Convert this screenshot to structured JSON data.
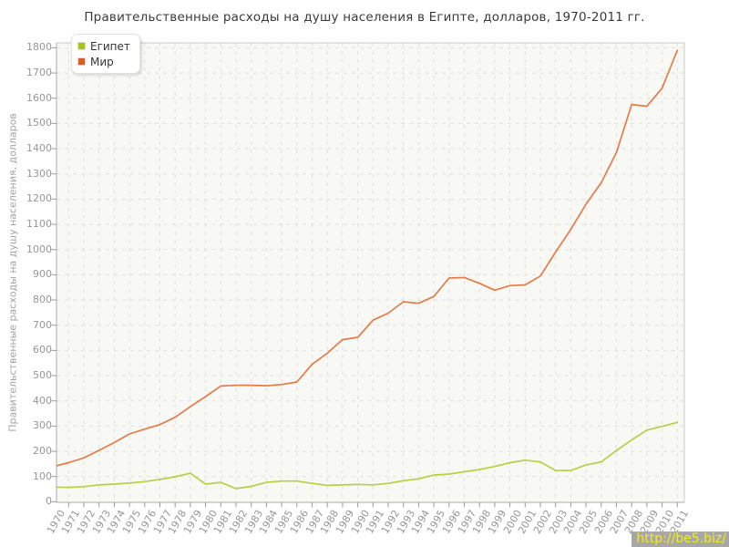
{
  "chart_data": {
    "type": "line",
    "title": "Правительственные расходы на душу населения в Египте, долларов, 1970-2011 гг.",
    "ylabel": "Правительственные расходы на душу населения, долларов",
    "xlabel": "",
    "ylim": [
      0,
      1800
    ],
    "y_tick_step": 100,
    "grid": true,
    "legend_position": "top-left",
    "categories": [
      1970,
      1971,
      1972,
      1973,
      1974,
      1975,
      1976,
      1977,
      1978,
      1979,
      1980,
      1981,
      1982,
      1983,
      1984,
      1985,
      1986,
      1987,
      1988,
      1989,
      1990,
      1991,
      1992,
      1993,
      1994,
      1995,
      1996,
      1997,
      1998,
      1999,
      2000,
      2001,
      2002,
      2003,
      2004,
      2005,
      2006,
      2007,
      2008,
      2009,
      2010,
      2011
    ],
    "series": [
      {
        "name": "Египет",
        "color": "#a6c618",
        "values": [
          58,
          57,
          60,
          67,
          70,
          74,
          80,
          89,
          99,
          113,
          70,
          77,
          52,
          61,
          77,
          82,
          82,
          73,
          65,
          67,
          69,
          67,
          73,
          83,
          91,
          106,
          110,
          119,
          128,
          140,
          155,
          165,
          158,
          124,
          124,
          146,
          158,
          203,
          245,
          284,
          299,
          315
        ]
      },
      {
        "name": "Мир",
        "color": "#dd5c21",
        "values": [
          140,
          155,
          174,
          204,
          235,
          269,
          288,
          306,
          335,
          377,
          417,
          459,
          462,
          462,
          460,
          465,
          475,
          545,
          589,
          643,
          652,
          720,
          748,
          793,
          787,
          814,
          887,
          889,
          866,
          839,
          857,
          860,
          895,
          990,
          1080,
          1180,
          1265,
          1385,
          1575,
          1568,
          1640,
          1790
        ]
      }
    ]
  },
  "watermark": {
    "text": "http://be5.biz/",
    "bg_color": "#a7a7a7",
    "text_color": "#f6ed13"
  }
}
